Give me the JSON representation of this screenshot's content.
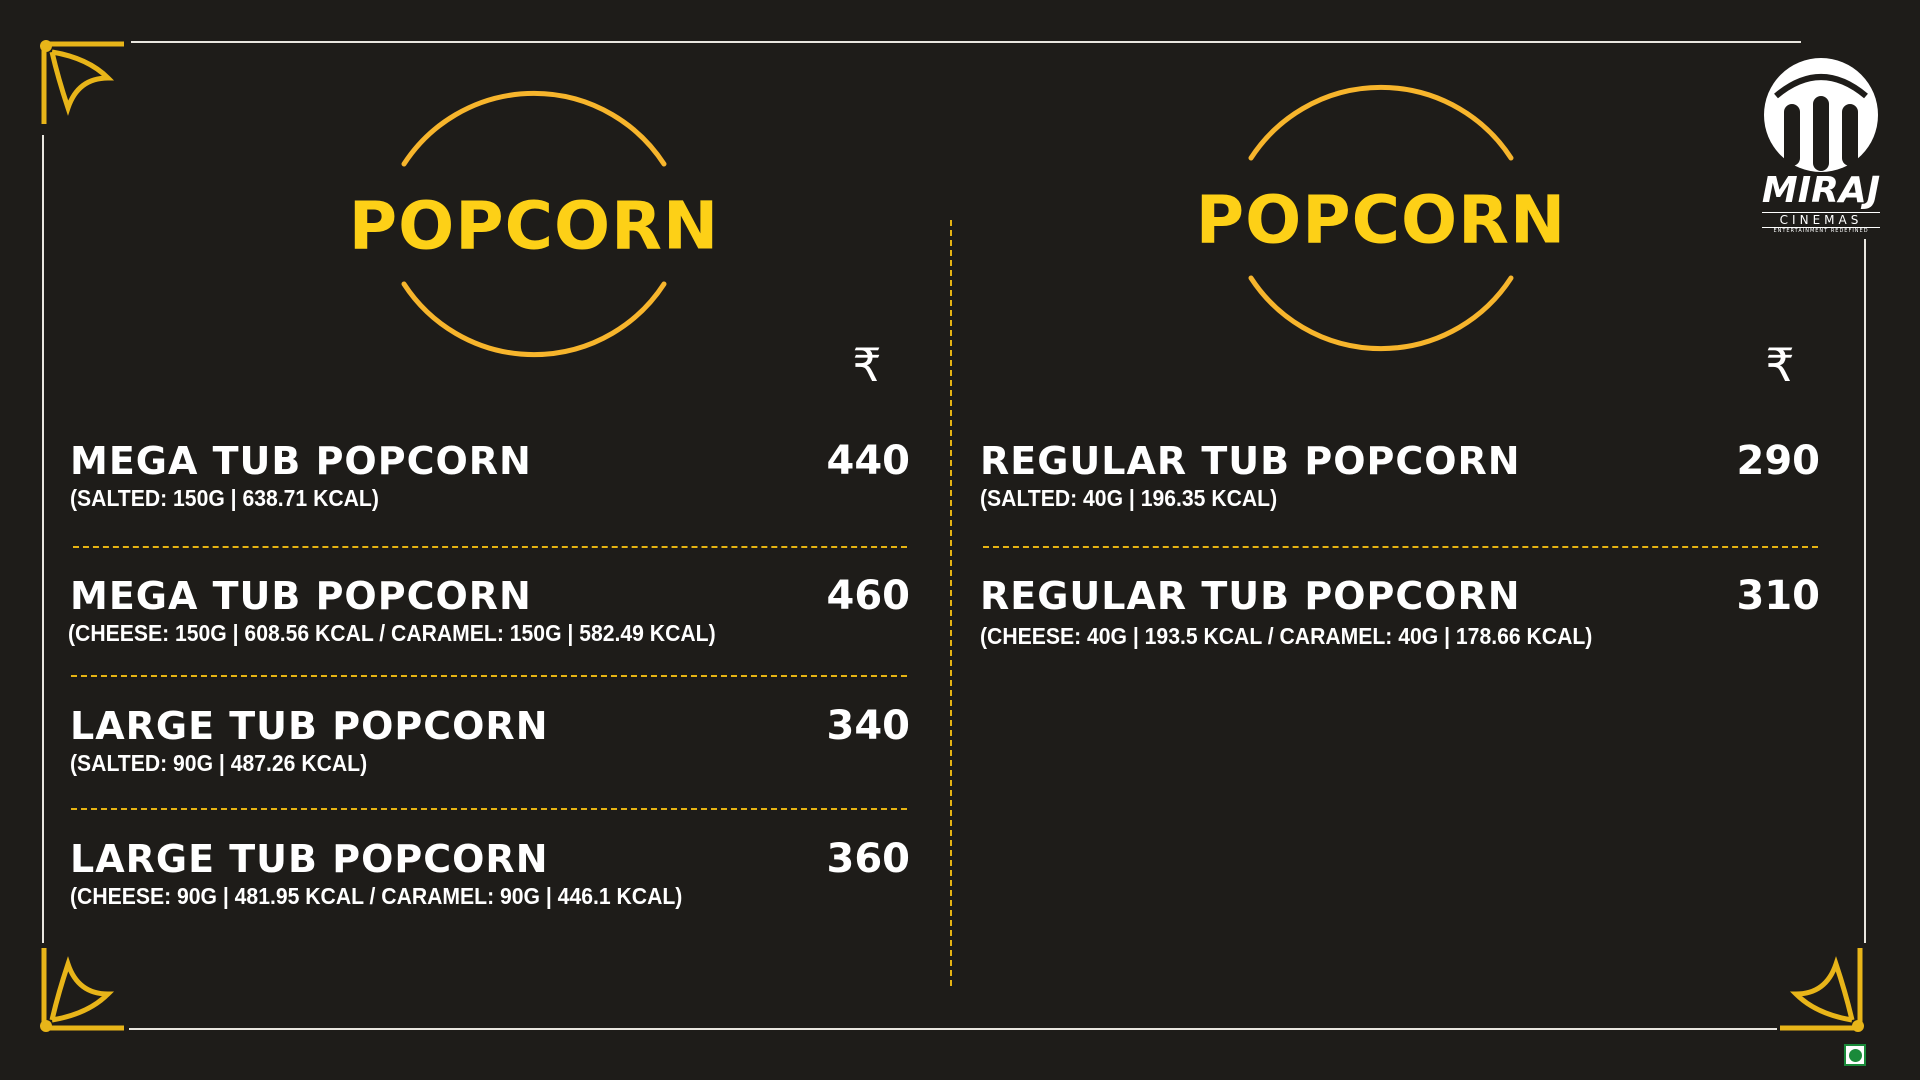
{
  "brand": {
    "name": "MIRAJ",
    "sub": "CINEMAS",
    "tagline": "ENTERTAINMENT REDEFINED"
  },
  "colors": {
    "accent": "#fdd017",
    "circle": "#f7b52c",
    "background": "#1e1c19"
  },
  "left": {
    "title": "POPCORN",
    "currency": "₹",
    "items": [
      {
        "name": "MEGA TUB POPCORN",
        "detail": "(SALTED: 150G | 638.71 KCAL)",
        "price": "440"
      },
      {
        "name": "MEGA TUB POPCORN",
        "detail": "(CHEESE: 150G | 608.56 KCAL  /  CARAMEL: 150G | 582.49 KCAL)",
        "price": "460"
      },
      {
        "name": "LARGE TUB POPCORN",
        "detail": "(SALTED: 90G | 487.26 KCAL)",
        "price": "340"
      },
      {
        "name": "LARGE TUB POPCORN",
        "detail": "(CHEESE: 90G | 481.95 KCAL  /  CARAMEL: 90G | 446.1 KCAL)",
        "price": "360"
      }
    ]
  },
  "right": {
    "title": "POPCORN",
    "currency": "₹",
    "items": [
      {
        "name": "REGULAR TUB POPCORN",
        "detail": "(SALTED: 40G | 196.35 KCAL)",
        "price": "290"
      },
      {
        "name": "REGULAR TUB POPCORN",
        "detail": "(CHEESE: 40G | 193.5 KCAL  /  CARAMEL: 40G | 178.66 KCAL)",
        "price": "310"
      }
    ]
  },
  "veg_mark": "veg-icon"
}
